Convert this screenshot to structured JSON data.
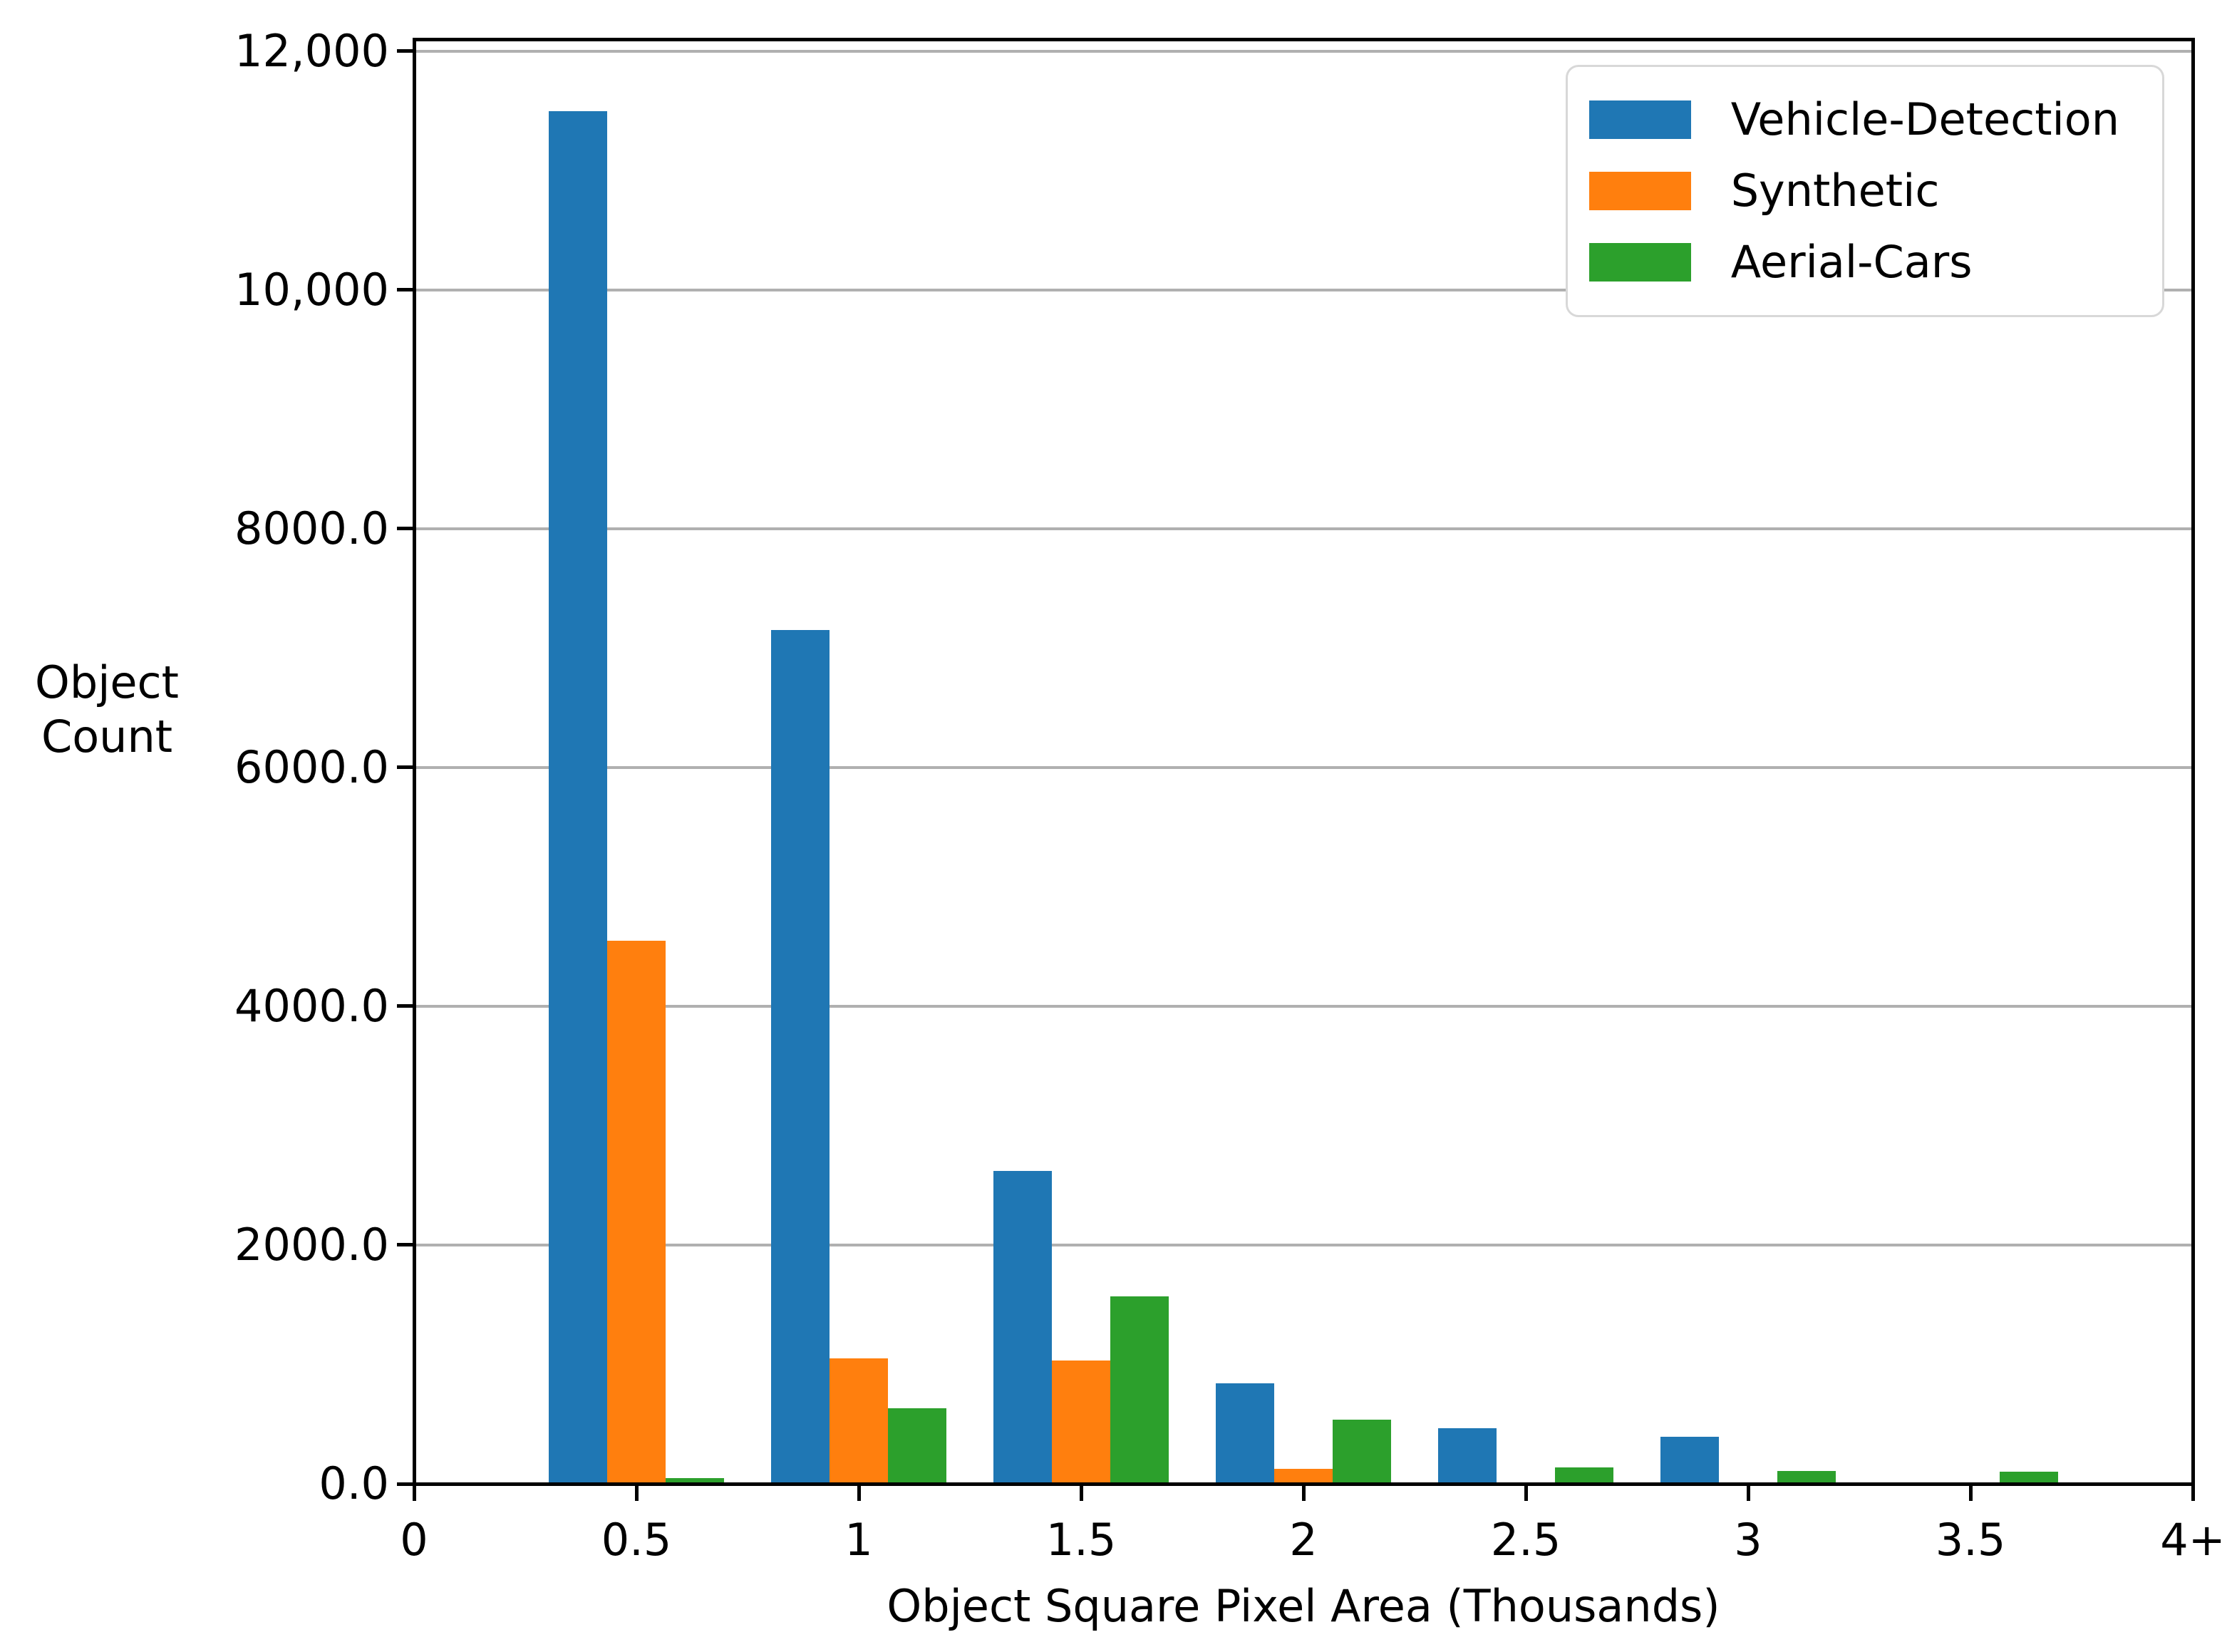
{
  "figure": {
    "ylabel_lines": [
      "Object",
      "Count"
    ],
    "y_axis": {
      "tick_values": [
        0,
        2000,
        4000,
        6000,
        8000,
        10000,
        12000
      ],
      "tick_labels": [
        "0.0",
        "2000.0",
        "4000.0",
        "6000.0",
        "8000.0",
        "10,000",
        "12,000"
      ]
    },
    "x_axis": {
      "tick_labels": [
        "0",
        "0.5",
        "1",
        "1.5",
        "2",
        "2.5",
        "3",
        "3.5",
        "4+"
      ]
    }
  },
  "chart_data": {
    "type": "bar",
    "title": "",
    "xlabel": "Object Square Pixel Area (Thousands)",
    "ylabel": "Object Count",
    "categories": [
      "0.5",
      "1",
      "1.5",
      "2",
      "2.5",
      "3",
      "3.5"
    ],
    "x_tick_positions": [
      0.5,
      1,
      1.5,
      2,
      2.5,
      3,
      3.5
    ],
    "x_range": [
      0,
      4
    ],
    "series": [
      {
        "name": "Vehicle-Detection",
        "color": "#1f77b4",
        "values": [
          11500,
          7150,
          2620,
          840,
          465,
          395,
          0
        ]
      },
      {
        "name": "Synthetic",
        "color": "#ff7f0e",
        "values": [
          4550,
          1050,
          1030,
          125,
          0,
          0,
          0
        ]
      },
      {
        "name": "Aerial-Cars",
        "color": "#2ca02c",
        "values": [
          50,
          630,
          1570,
          535,
          140,
          105,
          100
        ]
      }
    ],
    "ylim": [
      0,
      12100
    ],
    "grid": true,
    "gridline_color": "#b0b0b0",
    "legend_position": "upper right",
    "legend_entries": [
      "Vehicle-Detection",
      "Synthetic",
      "Aerial-Cars"
    ]
  }
}
